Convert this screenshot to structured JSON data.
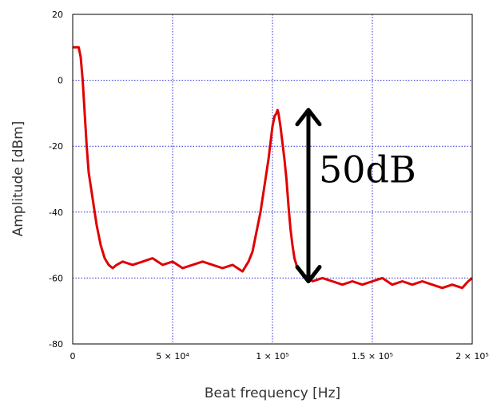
{
  "chart_data": {
    "type": "line",
    "title": "",
    "xlabel": "Beat frequency [Hz]",
    "ylabel": "Amplitude [dBm]",
    "xlim": [
      0,
      200000
    ],
    "ylim": [
      -80,
      20
    ],
    "grid": true,
    "x_ticks": [
      0,
      50000,
      100000,
      150000,
      200000
    ],
    "x_tick_labels": [
      "0",
      "5 × 10⁴",
      "1 × 10⁵",
      "1.5 × 10⁵",
      "2 × 10⁵"
    ],
    "y_ticks": [
      -80,
      -60,
      -40,
      -20,
      0,
      20
    ],
    "y_tick_labels": [
      "-80",
      "-60",
      "-40",
      "-20",
      "0",
      "20"
    ],
    "series": [
      {
        "color": "#e00000",
        "x": [
          0,
          1000,
          3000,
          4000,
          5000,
          6000,
          7000,
          8000,
          10000,
          12000,
          14000,
          16000,
          18000,
          20000,
          22000,
          25000,
          30000,
          35000,
          40000,
          45000,
          50000,
          55000,
          60000,
          65000,
          70000,
          75000,
          80000,
          85000,
          88000,
          90000,
          92000,
          94000,
          95000,
          96000,
          97000,
          98000,
          99000,
          100000,
          101000,
          102000,
          102500,
          103000,
          104000,
          105000,
          106000,
          107000,
          108000,
          109000,
          110000,
          111000,
          112000,
          113000,
          114000,
          115000,
          116000,
          117000,
          118000,
          120000,
          125000,
          130000,
          135000,
          140000,
          145000,
          150000,
          155000,
          160000,
          165000,
          170000,
          175000,
          180000,
          185000,
          190000,
          195000,
          198000,
          200000
        ],
        "y": [
          10,
          10,
          10,
          7,
          0,
          -10,
          -20,
          -28,
          -36,
          -44,
          -50,
          -54,
          -56,
          -57,
          -56,
          -55,
          -56,
          -55,
          -54,
          -56,
          -55,
          -57,
          -56,
          -55,
          -56,
          -57,
          -56,
          -58,
          -55,
          -52,
          -46,
          -40,
          -36,
          -32,
          -28,
          -24,
          -19,
          -14,
          -11,
          -10,
          -9,
          -10,
          -14,
          -19,
          -24,
          -30,
          -38,
          -45,
          -50,
          -54,
          -56,
          -57,
          -58,
          -59,
          -59,
          -60,
          -59,
          -61,
          -60,
          -61,
          -62,
          -61,
          -62,
          -61,
          -60,
          -62,
          -61,
          -62,
          -61,
          -62,
          -63,
          -62,
          -63,
          -61,
          -60
        ]
      }
    ],
    "annotations": [
      {
        "type": "double-arrow",
        "x": 118000,
        "y_from": -9,
        "y_to": -61,
        "label": "50dB"
      }
    ]
  }
}
